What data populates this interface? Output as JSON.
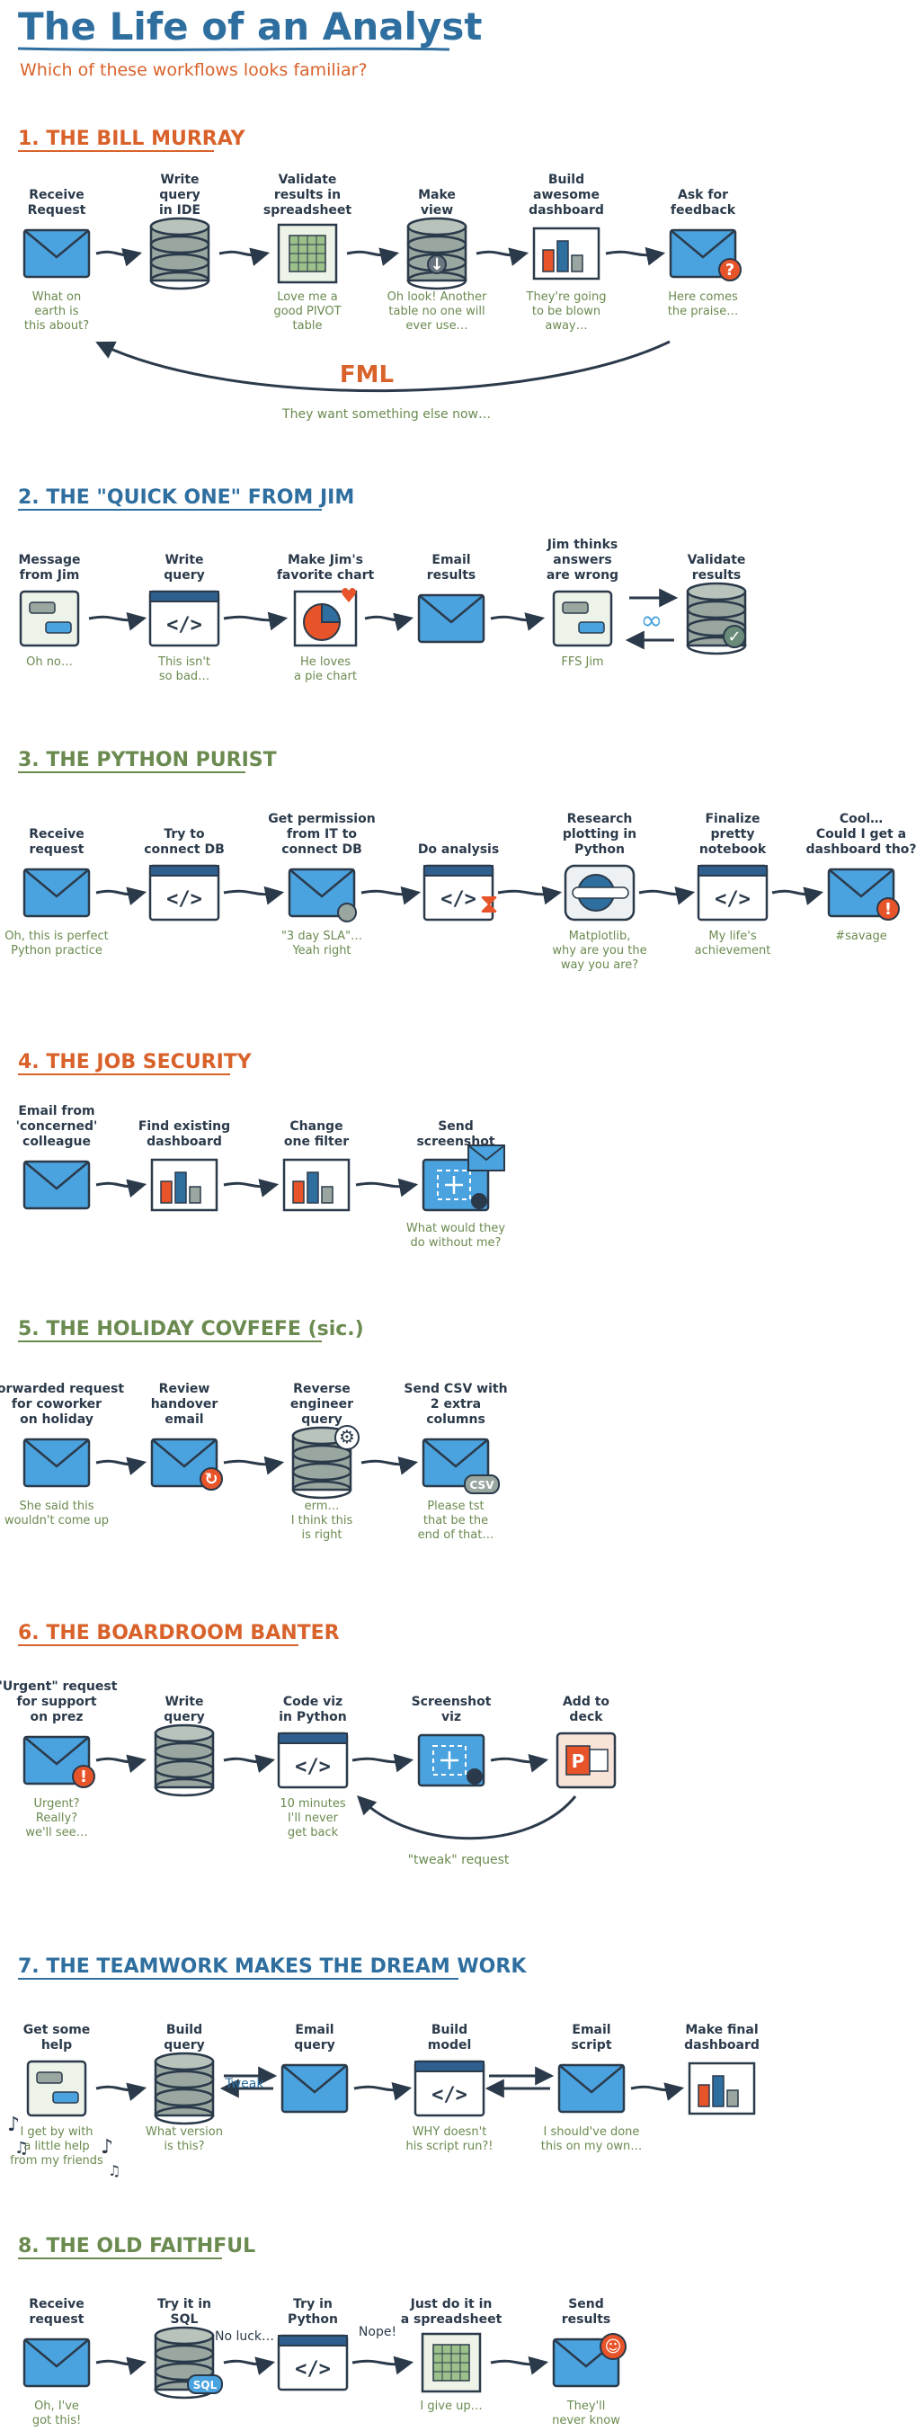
{
  "title": "The Life of an Analyst",
  "subtitle": "Which of these workflows looks familiar?",
  "colors": {
    "orange": "#d9622b",
    "blue": "#2f6f9f",
    "green": "#6a8a4f",
    "ink": "#2b3a4a",
    "email": "#4aa3df",
    "danger": "#e8542a"
  },
  "sections": [
    {
      "heading": "1. THE BILL MURRAY",
      "color": "#d9622b",
      "steps": [
        {
          "label": [
            "Receive",
            "Request"
          ],
          "icon": "email-icon",
          "note": [
            "What on",
            "earth is",
            "this about?"
          ]
        },
        {
          "label": [
            "Write",
            "query",
            "in IDE"
          ],
          "icon": "database-icon",
          "note": []
        },
        {
          "label": [
            "Validate",
            "results in",
            "spreadsheet"
          ],
          "icon": "spreadsheet-icon",
          "note": [
            "Love me a",
            "good PIVOT",
            "table"
          ]
        },
        {
          "label": [
            "Make",
            "view"
          ],
          "icon": "database-view-icon",
          "note": [
            "Oh look! Another",
            "table no one will",
            "ever use…"
          ]
        },
        {
          "label": [
            "Build",
            "awesome",
            "dashboard"
          ],
          "icon": "dashboard-icon",
          "note": [
            "They're going",
            "to be blown",
            "away…"
          ]
        },
        {
          "label": [
            "Ask for",
            "feedback"
          ],
          "icon": "email-question-icon",
          "note": [
            "Here comes",
            "the praise…"
          ]
        }
      ],
      "loop_label": "FML",
      "loop_note": "They want something else now…"
    },
    {
      "heading": "2. THE \"QUICK ONE\" FROM JIM",
      "color": "#2f6f9f",
      "steps": [
        {
          "label": [
            "Message",
            "from Jim"
          ],
          "icon": "chat-icon",
          "note": [
            "Oh no…"
          ]
        },
        {
          "label": [
            "Write",
            "query"
          ],
          "icon": "code-window-icon",
          "note": [
            "This isn't",
            "so bad…"
          ]
        },
        {
          "label": [
            "Make Jim's",
            "favorite chart"
          ],
          "icon": "pie-chart-icon",
          "note": [
            "He loves",
            "a pie chart"
          ]
        },
        {
          "label": [
            "Email",
            "results"
          ],
          "icon": "email-icon",
          "note": []
        },
        {
          "label": [
            "Jim thinks",
            "answers",
            "are wrong"
          ],
          "icon": "chat-icon",
          "note": [
            "FFS Jim"
          ]
        },
        {
          "label": [
            "Validate",
            "results"
          ],
          "icon": "database-check-icon",
          "note": []
        }
      ]
    },
    {
      "heading": "3. THE PYTHON PURIST",
      "color": "#6a8a4f",
      "steps": [
        {
          "label": [
            "Receive",
            "request"
          ],
          "icon": "email-icon",
          "note": [
            "Oh, this is perfect",
            "Python practice"
          ]
        },
        {
          "label": [
            "Try to",
            "connect DB"
          ],
          "icon": "code-window-icon",
          "note": []
        },
        {
          "label": [
            "Get permission",
            "from IT to",
            "connect DB"
          ],
          "icon": "email-plug-icon",
          "note": [
            "\"3 day SLA\"…",
            "Yeah right"
          ]
        },
        {
          "label": [
            "Do analysis"
          ],
          "icon": "code-hourglass-icon",
          "note": []
        },
        {
          "label": [
            "Research",
            "plotting in",
            "Python"
          ],
          "icon": "web-search-icon",
          "note": [
            "Matplotlib,",
            "why are you the",
            "way you are?"
          ]
        },
        {
          "label": [
            "Finalize",
            "pretty",
            "notebook"
          ],
          "icon": "code-window-icon",
          "note": [
            "My life's",
            "achievement"
          ]
        },
        {
          "label": [
            "Cool…",
            "Could I get a",
            "dashboard tho?"
          ],
          "icon": "email-alert-icon",
          "note": [
            "#savage"
          ]
        }
      ]
    },
    {
      "heading": "4. THE JOB SECURITY",
      "color": "#d9622b",
      "steps": [
        {
          "label": [
            "Email from",
            "'concerned'",
            "colleague"
          ],
          "icon": "email-icon",
          "note": []
        },
        {
          "label": [
            "Find existing",
            "dashboard"
          ],
          "icon": "dashboard-icon",
          "note": []
        },
        {
          "label": [
            "Change",
            "one filter"
          ],
          "icon": "dashboard-icon",
          "note": []
        },
        {
          "label": [
            "Send",
            "screenshot"
          ],
          "icon": "screenshot-email-icon",
          "note": [
            "What would they",
            "do without me?"
          ]
        }
      ]
    },
    {
      "heading": "5. THE HOLIDAY COVFEFE (sic.)",
      "color": "#6a8a4f",
      "steps": [
        {
          "label": [
            "Forwarded request",
            "for coworker",
            "on holiday"
          ],
          "icon": "email-icon",
          "note": [
            "She said this",
            "wouldn't come up"
          ]
        },
        {
          "label": [
            "Review",
            "handover",
            "email"
          ],
          "icon": "email-refresh-icon",
          "note": []
        },
        {
          "label": [
            "Reverse",
            "engineer",
            "query"
          ],
          "icon": "database-gear-icon",
          "note": [
            "erm…",
            "I think this",
            "is right"
          ]
        },
        {
          "label": [
            "Send CSV with",
            "2 extra",
            "columns"
          ],
          "icon": "email-csv-icon",
          "note": [
            "Please tst",
            "that be the",
            "end of that…"
          ]
        }
      ]
    },
    {
      "heading": "6. THE BOARDROOM BANTER",
      "color": "#d9622b",
      "steps": [
        {
          "label": [
            "\"Urgent\" request",
            "for support",
            "on prez"
          ],
          "icon": "email-alert-icon",
          "note": [
            "Urgent?",
            "Really?",
            "we'll see…"
          ]
        },
        {
          "label": [
            "Write",
            "query"
          ],
          "icon": "database-icon",
          "note": []
        },
        {
          "label": [
            "Code viz",
            "in Python"
          ],
          "icon": "code-window-icon",
          "note": [
            "10 minutes",
            "I'll never",
            "get back"
          ]
        },
        {
          "label": [
            "Screenshot",
            "viz"
          ],
          "icon": "screenshot-icon",
          "note": []
        },
        {
          "label": [
            "Add to",
            "deck"
          ],
          "icon": "powerpoint-icon",
          "note": []
        }
      ],
      "loop_note": "\"tweak\" request"
    },
    {
      "heading": "7. THE TEAMWORK MAKES THE DREAM WORK",
      "color": "#2f6f9f",
      "steps": [
        {
          "label": [
            "Get some",
            "help"
          ],
          "icon": "chat-icon",
          "note": [
            "I get by with",
            "a little help",
            "from my friends"
          ]
        },
        {
          "label": [
            "Build",
            "query"
          ],
          "icon": "database-icon",
          "note": [
            "What version",
            "is this?"
          ]
        },
        {
          "label": [
            "Email",
            "query"
          ],
          "icon": "email-icon",
          "note": []
        },
        {
          "label": [
            "Build",
            "model"
          ],
          "icon": "code-window-icon",
          "note": [
            "WHY doesn't",
            "his script run?!"
          ]
        },
        {
          "label": [
            "Email",
            "script"
          ],
          "icon": "email-icon",
          "note": [
            "I should've done",
            "this on my own…"
          ]
        },
        {
          "label": [
            "Make final",
            "dashboard"
          ],
          "icon": "dashboard-icon",
          "note": []
        }
      ],
      "arrow_label": "Tweak"
    },
    {
      "heading": "8. THE OLD FAITHFUL",
      "color": "#6a8a4f",
      "steps": [
        {
          "label": [
            "Receive",
            "request"
          ],
          "icon": "email-icon",
          "note": [
            "Oh, I've",
            "got this!"
          ]
        },
        {
          "label": [
            "Try it in",
            "SQL"
          ],
          "icon": "database-sql-icon",
          "note": []
        },
        {
          "label": [
            "Try in",
            "Python"
          ],
          "icon": "code-window-icon",
          "note": []
        },
        {
          "label": [
            "Just do it in",
            "a spreadsheet"
          ],
          "icon": "spreadsheet-icon",
          "note": [
            "I give up…"
          ]
        },
        {
          "label": [
            "Send",
            "results"
          ],
          "icon": "email-emoji-icon",
          "note": [
            "They'll",
            "never know"
          ]
        }
      ],
      "arrow_labels": [
        "No luck…",
        "Nope!"
      ],
      "badge": "SQL"
    }
  ],
  "badges": {
    "csv": "CSV",
    "sql": "SQL"
  }
}
